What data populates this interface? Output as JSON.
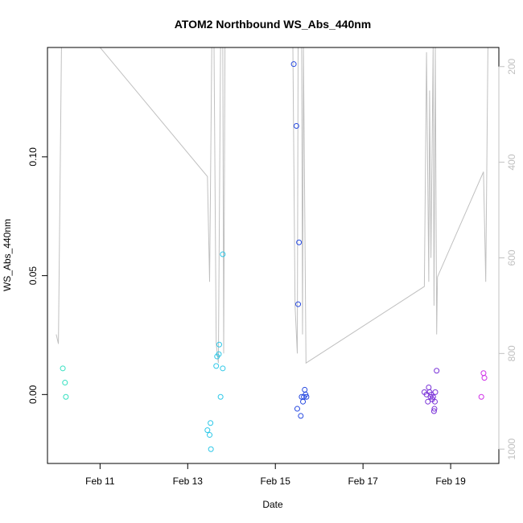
{
  "chart_data": {
    "type": "scatter",
    "title": "ATOM2 Northbound WS_Abs_440nm",
    "xlabel": "Date",
    "ylabel": "WS_Abs_440nm",
    "x_ticks": [
      {
        "label": "Feb 11",
        "day": 11
      },
      {
        "label": "Feb 13",
        "day": 13
      },
      {
        "label": "Feb 15",
        "day": 15
      },
      {
        "label": "Feb 17",
        "day": 17
      },
      {
        "label": "Feb 19",
        "day": 19
      }
    ],
    "xlim_days": [
      9.8,
      20.1
    ],
    "ylim": [
      -0.029,
      0.146
    ],
    "y_ticks": [
      {
        "label": "0.00",
        "value": 0.0
      },
      {
        "label": "0.05",
        "value": 0.05
      },
      {
        "label": "0.10",
        "value": 0.1
      }
    ],
    "right_axis": {
      "label": "",
      "lim": [
        1030,
        160
      ],
      "ticks": [
        {
          "label": "200",
          "value": 200
        },
        {
          "label": "400",
          "value": 400
        },
        {
          "label": "600",
          "value": 600
        },
        {
          "label": "800",
          "value": 800
        },
        {
          "label": "1000",
          "value": 1000
        }
      ],
      "line_color": "#c0c0c0"
    },
    "grid": false,
    "points": [
      {
        "x": 10.15,
        "y": 0.011,
        "color": "#33e0c0"
      },
      {
        "x": 10.2,
        "y": 0.005,
        "color": "#33e0c0"
      },
      {
        "x": 10.22,
        "y": -0.001,
        "color": "#33e0c0"
      },
      {
        "x": 13.45,
        "y": -0.015,
        "color": "#2ec8e8"
      },
      {
        "x": 13.5,
        "y": -0.017,
        "color": "#2ec8e8"
      },
      {
        "x": 13.52,
        "y": -0.012,
        "color": "#2ec8e8"
      },
      {
        "x": 13.53,
        "y": -0.023,
        "color": "#2ec8e8"
      },
      {
        "x": 13.65,
        "y": 0.012,
        "color": "#2ec8e8"
      },
      {
        "x": 13.67,
        "y": 0.016,
        "color": "#2ec8e8"
      },
      {
        "x": 13.71,
        "y": 0.017,
        "color": "#2ec8e8"
      },
      {
        "x": 13.72,
        "y": 0.021,
        "color": "#2ec8e8"
      },
      {
        "x": 13.75,
        "y": -0.001,
        "color": "#2ec8e8"
      },
      {
        "x": 13.8,
        "y": 0.011,
        "color": "#2ec8e8"
      },
      {
        "x": 13.8,
        "y": 0.059,
        "color": "#2ec8e8"
      },
      {
        "x": 15.42,
        "y": 0.139,
        "color": "#2548e0"
      },
      {
        "x": 15.48,
        "y": 0.113,
        "color": "#2548e0"
      },
      {
        "x": 15.5,
        "y": -0.006,
        "color": "#2548e0"
      },
      {
        "x": 15.52,
        "y": 0.038,
        "color": "#2548e0"
      },
      {
        "x": 15.54,
        "y": 0.064,
        "color": "#2548e0"
      },
      {
        "x": 15.58,
        "y": -0.009,
        "color": "#2548e0"
      },
      {
        "x": 15.6,
        "y": -0.001,
        "color": "#2548e0"
      },
      {
        "x": 15.63,
        "y": -0.003,
        "color": "#2548e0"
      },
      {
        "x": 15.65,
        "y": -0.001,
        "color": "#2548e0"
      },
      {
        "x": 15.67,
        "y": 0.002,
        "color": "#2548e0"
      },
      {
        "x": 15.69,
        "y": 0.0,
        "color": "#2548e0"
      },
      {
        "x": 15.71,
        "y": -0.001,
        "color": "#2548e0"
      },
      {
        "x": 18.4,
        "y": 0.001,
        "color": "#7a32d8"
      },
      {
        "x": 18.45,
        "y": 0.0,
        "color": "#7a32d8"
      },
      {
        "x": 18.48,
        "y": -0.003,
        "color": "#7a32d8"
      },
      {
        "x": 18.5,
        "y": 0.003,
        "color": "#7a32d8"
      },
      {
        "x": 18.52,
        "y": 0.001,
        "color": "#7a32d8"
      },
      {
        "x": 18.54,
        "y": -0.001,
        "color": "#7a32d8"
      },
      {
        "x": 18.56,
        "y": 0.0,
        "color": "#7a32d8"
      },
      {
        "x": 18.58,
        "y": -0.002,
        "color": "#7a32d8"
      },
      {
        "x": 18.6,
        "y": -0.001,
        "color": "#7a32d8"
      },
      {
        "x": 18.62,
        "y": -0.007,
        "color": "#7a32d8"
      },
      {
        "x": 18.63,
        "y": -0.006,
        "color": "#7a32d8"
      },
      {
        "x": 18.64,
        "y": -0.003,
        "color": "#7a32d8"
      },
      {
        "x": 18.65,
        "y": 0.001,
        "color": "#7a32d8"
      },
      {
        "x": 18.68,
        "y": 0.01,
        "color": "#7a32d8"
      },
      {
        "x": 19.7,
        "y": -0.001,
        "color": "#d030e8"
      },
      {
        "x": 19.75,
        "y": 0.009,
        "color": "#d030e8"
      },
      {
        "x": 19.77,
        "y": 0.007,
        "color": "#d030e8"
      }
    ],
    "line": [
      [
        10.0,
        760
      ],
      [
        10.05,
        780
      ],
      [
        10.12,
        160
      ],
      [
        10.3,
        160
      ],
      [
        11.0,
        160
      ],
      [
        13.45,
        430
      ],
      [
        13.5,
        650
      ],
      [
        13.55,
        160
      ],
      [
        13.6,
        160
      ],
      [
        13.65,
        780
      ],
      [
        13.7,
        820
      ],
      [
        13.75,
        160
      ],
      [
        13.8,
        160
      ],
      [
        13.82,
        800
      ],
      [
        13.85,
        160
      ],
      [
        15.35,
        160
      ],
      [
        15.4,
        160
      ],
      [
        15.45,
        700
      ],
      [
        15.5,
        800
      ],
      [
        15.52,
        160
      ],
      [
        15.6,
        160
      ],
      [
        15.62,
        760
      ],
      [
        15.64,
        160
      ],
      [
        15.7,
        820
      ],
      [
        18.4,
        660
      ],
      [
        18.45,
        170
      ],
      [
        18.5,
        650
      ],
      [
        18.52,
        250
      ],
      [
        18.55,
        600
      ],
      [
        18.6,
        160
      ],
      [
        18.62,
        700
      ],
      [
        18.65,
        160
      ],
      [
        18.68,
        760
      ],
      [
        18.7,
        640
      ],
      [
        19.75,
        420
      ],
      [
        19.8,
        650
      ],
      [
        19.85,
        160
      ]
    ]
  }
}
